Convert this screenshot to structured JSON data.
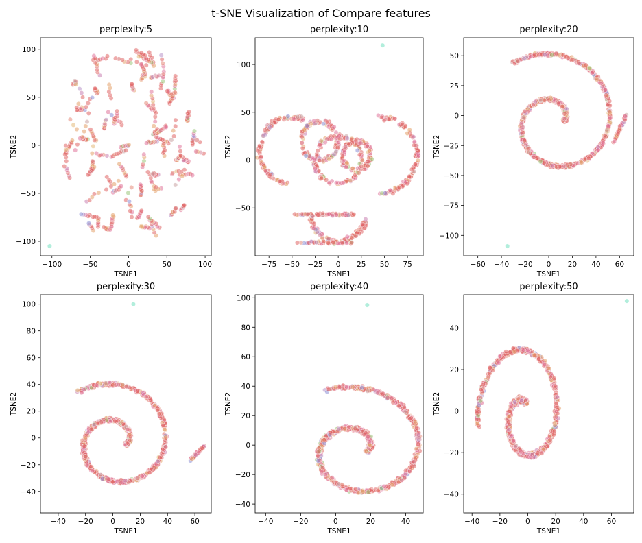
{
  "figure": {
    "title": "t-SNE Visualization of Compare features"
  },
  "chart_data": [
    {
      "type": "scatter",
      "title": "perplexity:5",
      "xlabel": "TSNE1",
      "ylabel": "TSNE2",
      "xlim": [
        -115,
        108
      ],
      "ylim": [
        -115,
        112
      ],
      "xticks": [
        -100,
        -50,
        0,
        50,
        100
      ],
      "yticks": [
        -100,
        -50,
        0,
        50,
        100
      ],
      "shape": "scattered clusters",
      "outliers": [
        [
          -103,
          -105
        ]
      ]
    },
    {
      "type": "scatter",
      "title": "perplexity:10",
      "xlabel": "TSNE1",
      "ylabel": "TSNE2",
      "xlim": [
        -90,
        92
      ],
      "ylim": [
        -100,
        128
      ],
      "xticks": [
        -75,
        -50,
        -25,
        0,
        25,
        50,
        75
      ],
      "yticks": [
        -50,
        0,
        50,
        100
      ],
      "shape": "ring clusters",
      "outliers": [
        [
          48,
          120
        ]
      ]
    },
    {
      "type": "scatter",
      "title": "perplexity:20",
      "xlabel": "TSNE1",
      "ylabel": "TSNE2",
      "xlim": [
        -72,
        72
      ],
      "ylim": [
        -117,
        65
      ],
      "xticks": [
        -60,
        -40,
        -20,
        0,
        20,
        40,
        60
      ],
      "yticks": [
        -100,
        -75,
        -50,
        -25,
        0,
        25,
        50
      ],
      "shape": "spiral",
      "outliers": [
        [
          -35,
          -109
        ]
      ]
    },
    {
      "type": "scatter",
      "title": "perplexity:30",
      "xlabel": "TSNE1",
      "ylabel": "TSNE2",
      "xlim": [
        -53,
        72
      ],
      "ylim": [
        -56,
        107
      ],
      "xticks": [
        -40,
        -20,
        0,
        20,
        40,
        60
      ],
      "yticks": [
        -40,
        -20,
        0,
        20,
        40,
        60,
        80,
        100
      ],
      "shape": "spiral",
      "outliers": [
        [
          15,
          100
        ]
      ]
    },
    {
      "type": "scatter",
      "title": "perplexity:40",
      "xlabel": "TSNE1",
      "ylabel": "TSNE2",
      "xlim": [
        -46,
        50
      ],
      "ylim": [
        -46,
        102
      ],
      "xticks": [
        -40,
        -20,
        0,
        20,
        40
      ],
      "yticks": [
        -40,
        -20,
        0,
        20,
        40,
        60,
        80,
        100
      ],
      "shape": "spiral",
      "outliers": [
        [
          18,
          95
        ]
      ]
    },
    {
      "type": "scatter",
      "title": "perplexity:50",
      "xlabel": "TSNE1",
      "ylabel": "TSNE2",
      "xlim": [
        -46,
        76
      ],
      "ylim": [
        -49,
        56
      ],
      "xticks": [
        -40,
        -20,
        0,
        20,
        40,
        60
      ],
      "yticks": [
        -40,
        -20,
        0,
        20,
        40
      ],
      "shape": "spiral",
      "outliers": [
        [
          71,
          53
        ]
      ]
    }
  ]
}
